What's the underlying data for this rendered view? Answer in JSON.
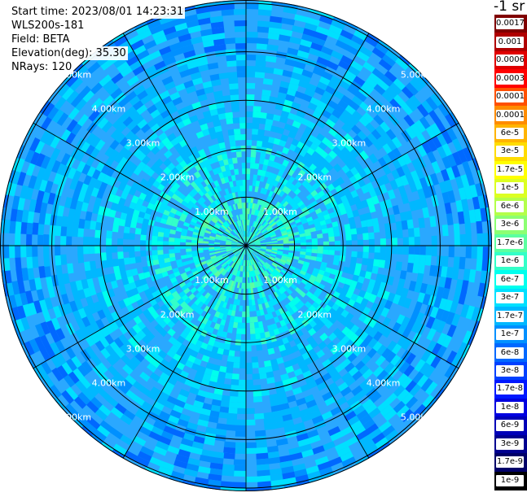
{
  "header": {
    "start_time": "Start time: 2023/08/01 14:23:31",
    "instrument": "WLS200s-181",
    "field": "Field: BETA",
    "elevation": "Elevation(deg): 35.30",
    "nrays": "NRays: 120"
  },
  "colorbar": {
    "unit_title": "-1 sr",
    "labels": [
      "0.0017",
      "0.001",
      "0.0006",
      "0.0003",
      "0.00017",
      "0.0001",
      "6e-5",
      "3e-5",
      "1.7e-5",
      "1e-5",
      "6e-6",
      "3e-6",
      "1.7e-6",
      "1e-6",
      "6e-7",
      "3e-7",
      "1.7e-7",
      "1e-7",
      "6e-8",
      "3e-8",
      "1.7e-8",
      "1e-8",
      "6e-9",
      "3e-9",
      "1.7e-9",
      "1e-9"
    ],
    "colors": [
      "#800000",
      "#b00000",
      "#e00000",
      "#ff0000",
      "#ff5000",
      "#ff8c00",
      "#ffb400",
      "#ffdc00",
      "#ffff00",
      "#dcff22",
      "#b4ff4a",
      "#8cff72",
      "#5cffa0",
      "#33ffc8",
      "#00ffee",
      "#00e0ff",
      "#00b8ff",
      "#0090ff",
      "#0068ff",
      "#0040ff",
      "#0018ff",
      "#0000e0",
      "#0000b8",
      "#000090",
      "#000068",
      "#000000"
    ]
  },
  "plot": {
    "ring_labels": [
      "1.00km",
      "2.00km",
      "3.00km",
      "4.00km",
      "5.00km"
    ],
    "nrays": 120,
    "background_color": "#ffffff",
    "grid_color": "#000000"
  }
}
